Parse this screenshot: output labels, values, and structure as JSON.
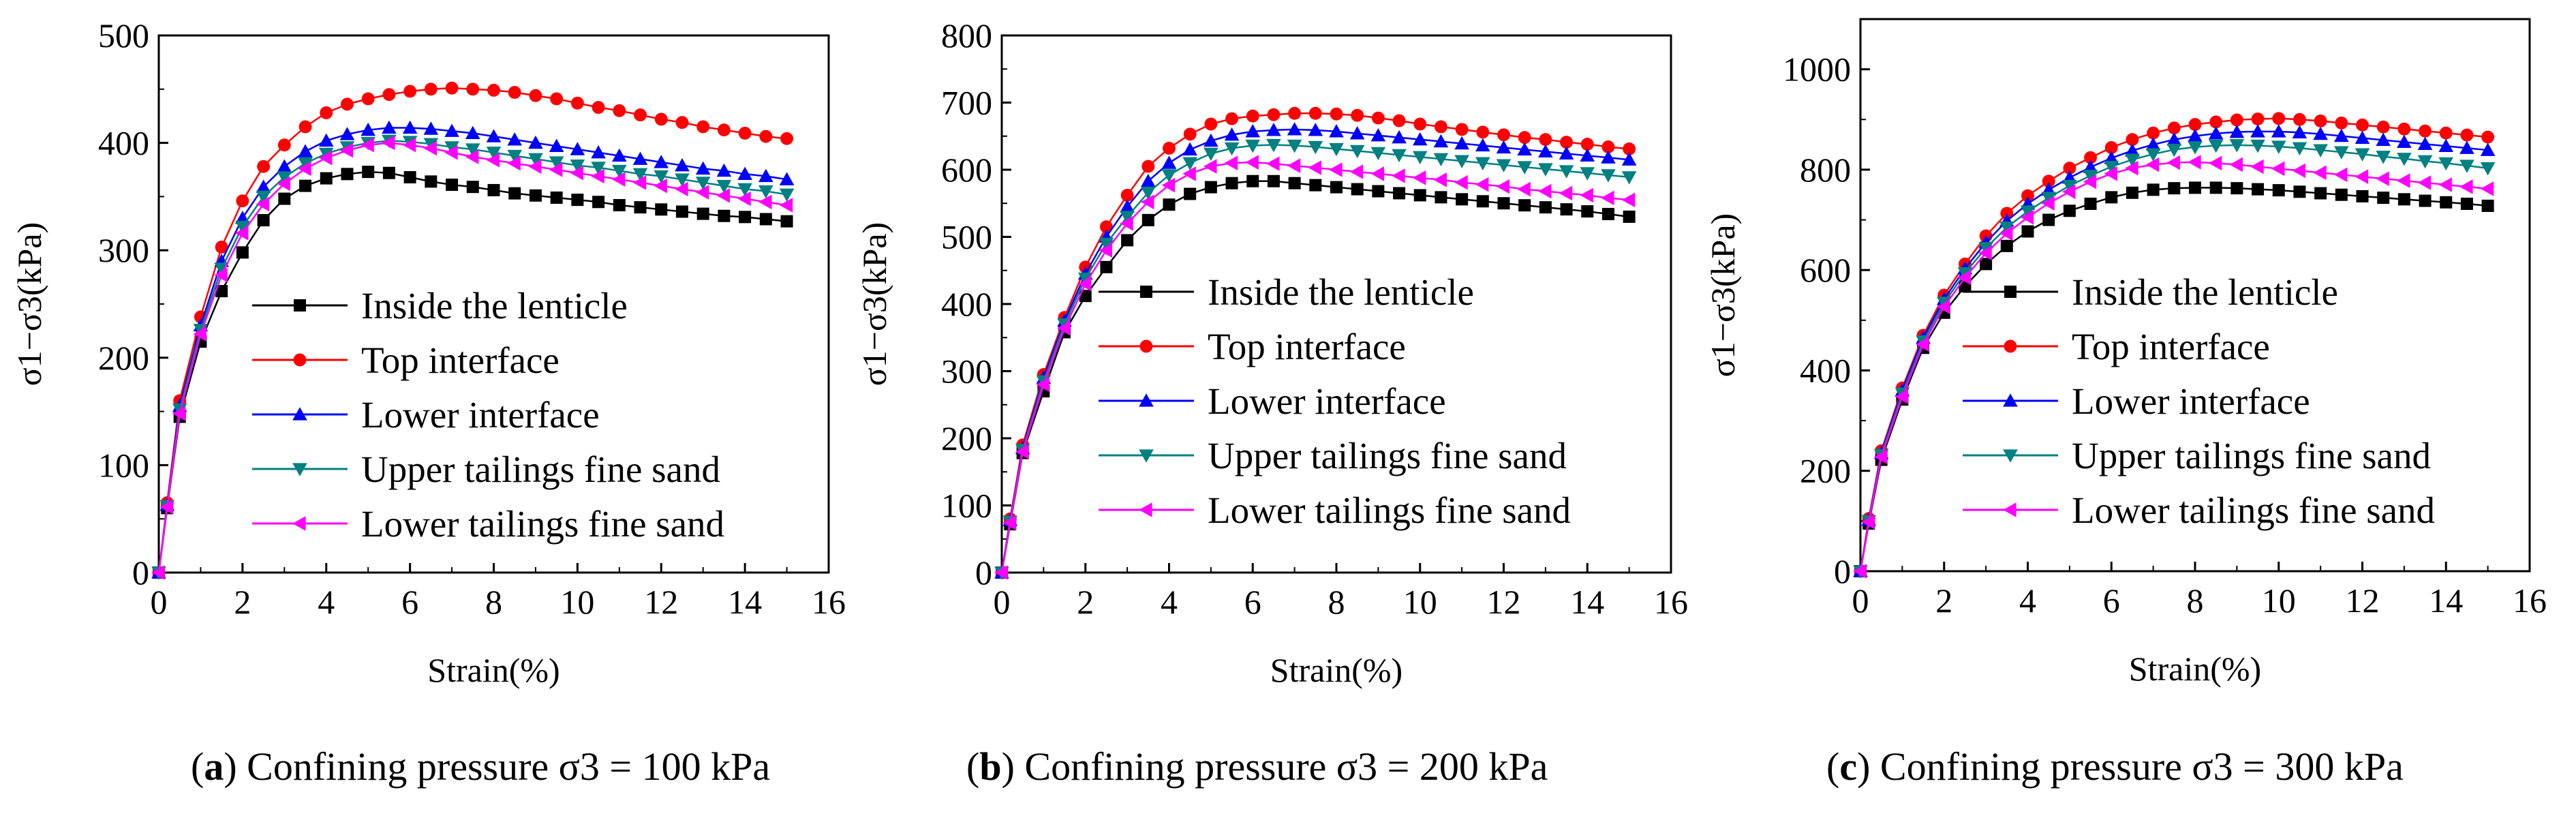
{
  "chart_data": [
    {
      "type": "line",
      "panel": "a",
      "caption_letter": "a",
      "caption_text": "Confining pressure σ3 = 100 kPa",
      "xlabel": "Strain(%)",
      "ylabel": "σ1−σ3(kPa)",
      "xlim": [
        0,
        16
      ],
      "ylim": [
        0,
        500
      ],
      "xticks": [
        0,
        2,
        4,
        6,
        8,
        10,
        12,
        14,
        16
      ],
      "yticks": [
        0,
        100,
        200,
        300,
        400,
        500
      ],
      "x": [
        0,
        0.2,
        0.5,
        1,
        1.5,
        2,
        2.5,
        3,
        3.5,
        4,
        4.5,
        5,
        5.5,
        6,
        6.5,
        7,
        7.5,
        8,
        8.5,
        9,
        9.5,
        10,
        10.5,
        11,
        11.5,
        12,
        12.5,
        13,
        13.5,
        14,
        14.5,
        15
      ],
      "legend_position": "center",
      "series": [
        {
          "name": "Inside the lenticle",
          "color": "#000000",
          "marker": "square",
          "values": [
            0,
            60,
            145,
            215,
            262,
            298,
            328,
            348,
            360,
            367,
            371,
            373,
            372,
            368,
            364,
            361,
            359,
            356,
            353,
            351,
            349,
            347,
            345,
            342,
            340,
            338,
            336,
            334,
            332,
            331,
            329,
            327
          ]
        },
        {
          "name": "Top interface",
          "color": "#ff0000",
          "marker": "circle",
          "values": [
            0,
            65,
            160,
            238,
            303,
            346,
            378,
            398,
            415,
            428,
            436,
            441,
            445,
            448,
            450,
            451,
            450,
            449,
            447,
            444,
            441,
            437,
            433,
            430,
            426,
            422,
            419,
            415,
            412,
            409,
            406,
            404
          ]
        },
        {
          "name": "Lower interface",
          "color": "#0000ff",
          "marker": "triangle-up",
          "values": [
            0,
            63,
            155,
            230,
            290,
            330,
            359,
            378,
            392,
            402,
            408,
            412,
            414,
            414,
            413,
            411,
            409,
            406,
            403,
            400,
            397,
            394,
            391,
            388,
            385,
            382,
            379,
            376,
            374,
            371,
            369,
            366
          ]
        },
        {
          "name": "Upper tailings fine sand",
          "color": "#008080",
          "marker": "triangle-down",
          "values": [
            0,
            62,
            152,
            226,
            283,
            322,
            350,
            368,
            381,
            390,
            396,
            400,
            402,
            401,
            399,
            396,
            394,
            391,
            388,
            385,
            382,
            379,
            377,
            374,
            371,
            369,
            366,
            363,
            360,
            357,
            355,
            352
          ]
        },
        {
          "name": "Lower tailings fine sand",
          "color": "#ff00ff",
          "marker": "triangle-left",
          "values": [
            0,
            61,
            148,
            222,
            277,
            316,
            343,
            362,
            376,
            386,
            393,
            398,
            400,
            398,
            395,
            391,
            387,
            384,
            381,
            378,
            375,
            372,
            369,
            366,
            363,
            360,
            357,
            354,
            351,
            348,
            345,
            342
          ]
        }
      ]
    },
    {
      "type": "line",
      "panel": "b",
      "caption_letter": "b",
      "caption_text": "Confining pressure σ3 = 200 kPa",
      "xlabel": "Strain(%)",
      "ylabel": "σ1−σ3(kPa)",
      "xlim": [
        0,
        16
      ],
      "ylim": [
        0,
        800
      ],
      "xticks": [
        0,
        2,
        4,
        6,
        8,
        10,
        12,
        14,
        16
      ],
      "yticks": [
        0,
        100,
        200,
        300,
        400,
        500,
        600,
        700,
        800
      ],
      "x": [
        0,
        0.2,
        0.5,
        1,
        1.5,
        2,
        2.5,
        3,
        3.5,
        4,
        4.5,
        5,
        5.5,
        6,
        6.5,
        7,
        7.5,
        8,
        8.5,
        9,
        9.5,
        10,
        10.5,
        11,
        11.5,
        12,
        12.5,
        13,
        13.5,
        14,
        14.5,
        15
      ],
      "legend_position": "center",
      "series": [
        {
          "name": "Inside the lenticle",
          "color": "#000000",
          "marker": "square",
          "values": [
            0,
            72,
            178,
            270,
            358,
            412,
            455,
            495,
            525,
            548,
            564,
            574,
            580,
            583,
            583,
            580,
            577,
            574,
            571,
            568,
            565,
            562,
            559,
            556,
            553,
            550,
            547,
            544,
            541,
            538,
            534,
            530
          ]
        },
        {
          "name": "Top interface",
          "color": "#ff0000",
          "marker": "circle",
          "values": [
            0,
            80,
            190,
            295,
            380,
            455,
            515,
            562,
            605,
            632,
            653,
            668,
            676,
            680,
            682,
            684,
            684,
            683,
            681,
            677,
            673,
            668,
            664,
            660,
            656,
            652,
            648,
            645,
            641,
            638,
            634,
            631
          ]
        },
        {
          "name": "Lower interface",
          "color": "#0000ff",
          "marker": "triangle-up",
          "values": [
            0,
            78,
            185,
            290,
            375,
            445,
            500,
            545,
            583,
            610,
            630,
            643,
            652,
            657,
            659,
            660,
            659,
            657,
            654,
            651,
            648,
            645,
            642,
            639,
            636,
            633,
            630,
            627,
            624,
            621,
            618,
            615
          ]
        },
        {
          "name": "Upper tailings fine sand",
          "color": "#008080",
          "marker": "triangle-down",
          "values": [
            0,
            76,
            183,
            285,
            370,
            438,
            490,
            530,
            566,
            592,
            610,
            624,
            632,
            636,
            637,
            636,
            634,
            631,
            628,
            625,
            622,
            619,
            616,
            613,
            610,
            607,
            604,
            601,
            598,
            595,
            592,
            589
          ]
        },
        {
          "name": "Lower tailings fine sand",
          "color": "#ff00ff",
          "marker": "triangle-left",
          "values": [
            0,
            74,
            180,
            280,
            364,
            430,
            480,
            520,
            552,
            577,
            594,
            605,
            610,
            611,
            609,
            606,
            603,
            600,
            597,
            594,
            591,
            588,
            585,
            581,
            578,
            575,
            571,
            568,
            565,
            562,
            558,
            555
          ]
        }
      ]
    },
    {
      "type": "line",
      "panel": "c",
      "caption_letter": "c",
      "caption_text": "Confining pressure σ3 = 300 kPa",
      "xlabel": "Strain(%)",
      "ylabel": "σ1−σ3(kPa)",
      "xlim": [
        0,
        16
      ],
      "ylim": [
        0,
        1100
      ],
      "xticks": [
        0,
        2,
        4,
        6,
        8,
        10,
        12,
        14,
        16
      ],
      "yticks": [
        0,
        200,
        400,
        600,
        800,
        1000
      ],
      "x": [
        0,
        0.2,
        0.5,
        1,
        1.5,
        2,
        2.5,
        3,
        3.5,
        4,
        4.5,
        5,
        5.5,
        6,
        6.5,
        7,
        7.5,
        8,
        8.5,
        9,
        9.5,
        10,
        10.5,
        11,
        11.5,
        12,
        12.5,
        13,
        13.5,
        14,
        14.5,
        15
      ],
      "legend_position": "center",
      "series": [
        {
          "name": "Inside the lenticle",
          "color": "#000000",
          "marker": "square",
          "values": [
            0,
            95,
            222,
            342,
            445,
            515,
            568,
            612,
            648,
            677,
            700,
            718,
            732,
            745,
            754,
            760,
            763,
            764,
            764,
            763,
            761,
            759,
            756,
            753,
            750,
            747,
            744,
            741,
            738,
            735,
            732,
            728
          ]
        },
        {
          "name": "Top interface",
          "color": "#ff0000",
          "marker": "circle",
          "values": [
            0,
            105,
            240,
            365,
            470,
            550,
            612,
            668,
            713,
            748,
            777,
            803,
            824,
            844,
            860,
            873,
            883,
            890,
            895,
            899,
            901,
            902,
            900,
            897,
            893,
            889,
            885,
            881,
            877,
            873,
            869,
            865
          ]
        },
        {
          "name": "Lower interface",
          "color": "#0000ff",
          "marker": "triangle-up",
          "values": [
            0,
            102,
            235,
            360,
            465,
            542,
            603,
            655,
            698,
            732,
            760,
            784,
            805,
            823,
            838,
            850,
            860,
            867,
            872,
            875,
            876,
            876,
            874,
            871,
            867,
            863,
            859,
            855,
            851,
            847,
            843,
            839
          ]
        },
        {
          "name": "Upper tailings fine sand",
          "color": "#008080",
          "marker": "triangle-down",
          "values": [
            0,
            100,
            232,
            354,
            458,
            535,
            594,
            644,
            685,
            717,
            744,
            768,
            788,
            806,
            820,
            831,
            840,
            845,
            848,
            849,
            848,
            846,
            843,
            839,
            835,
            831,
            826,
            822,
            817,
            813,
            808,
            803
          ]
        },
        {
          "name": "Lower tailings fine sand",
          "color": "#ff00ff",
          "marker": "triangle-left",
          "values": [
            0,
            98,
            228,
            348,
            452,
            527,
            585,
            634,
            673,
            705,
            733,
            756,
            776,
            792,
            803,
            810,
            814,
            815,
            813,
            810,
            806,
            802,
            798,
            794,
            790,
            786,
            782,
            778,
            774,
            770,
            766,
            762
          ]
        }
      ]
    }
  ]
}
